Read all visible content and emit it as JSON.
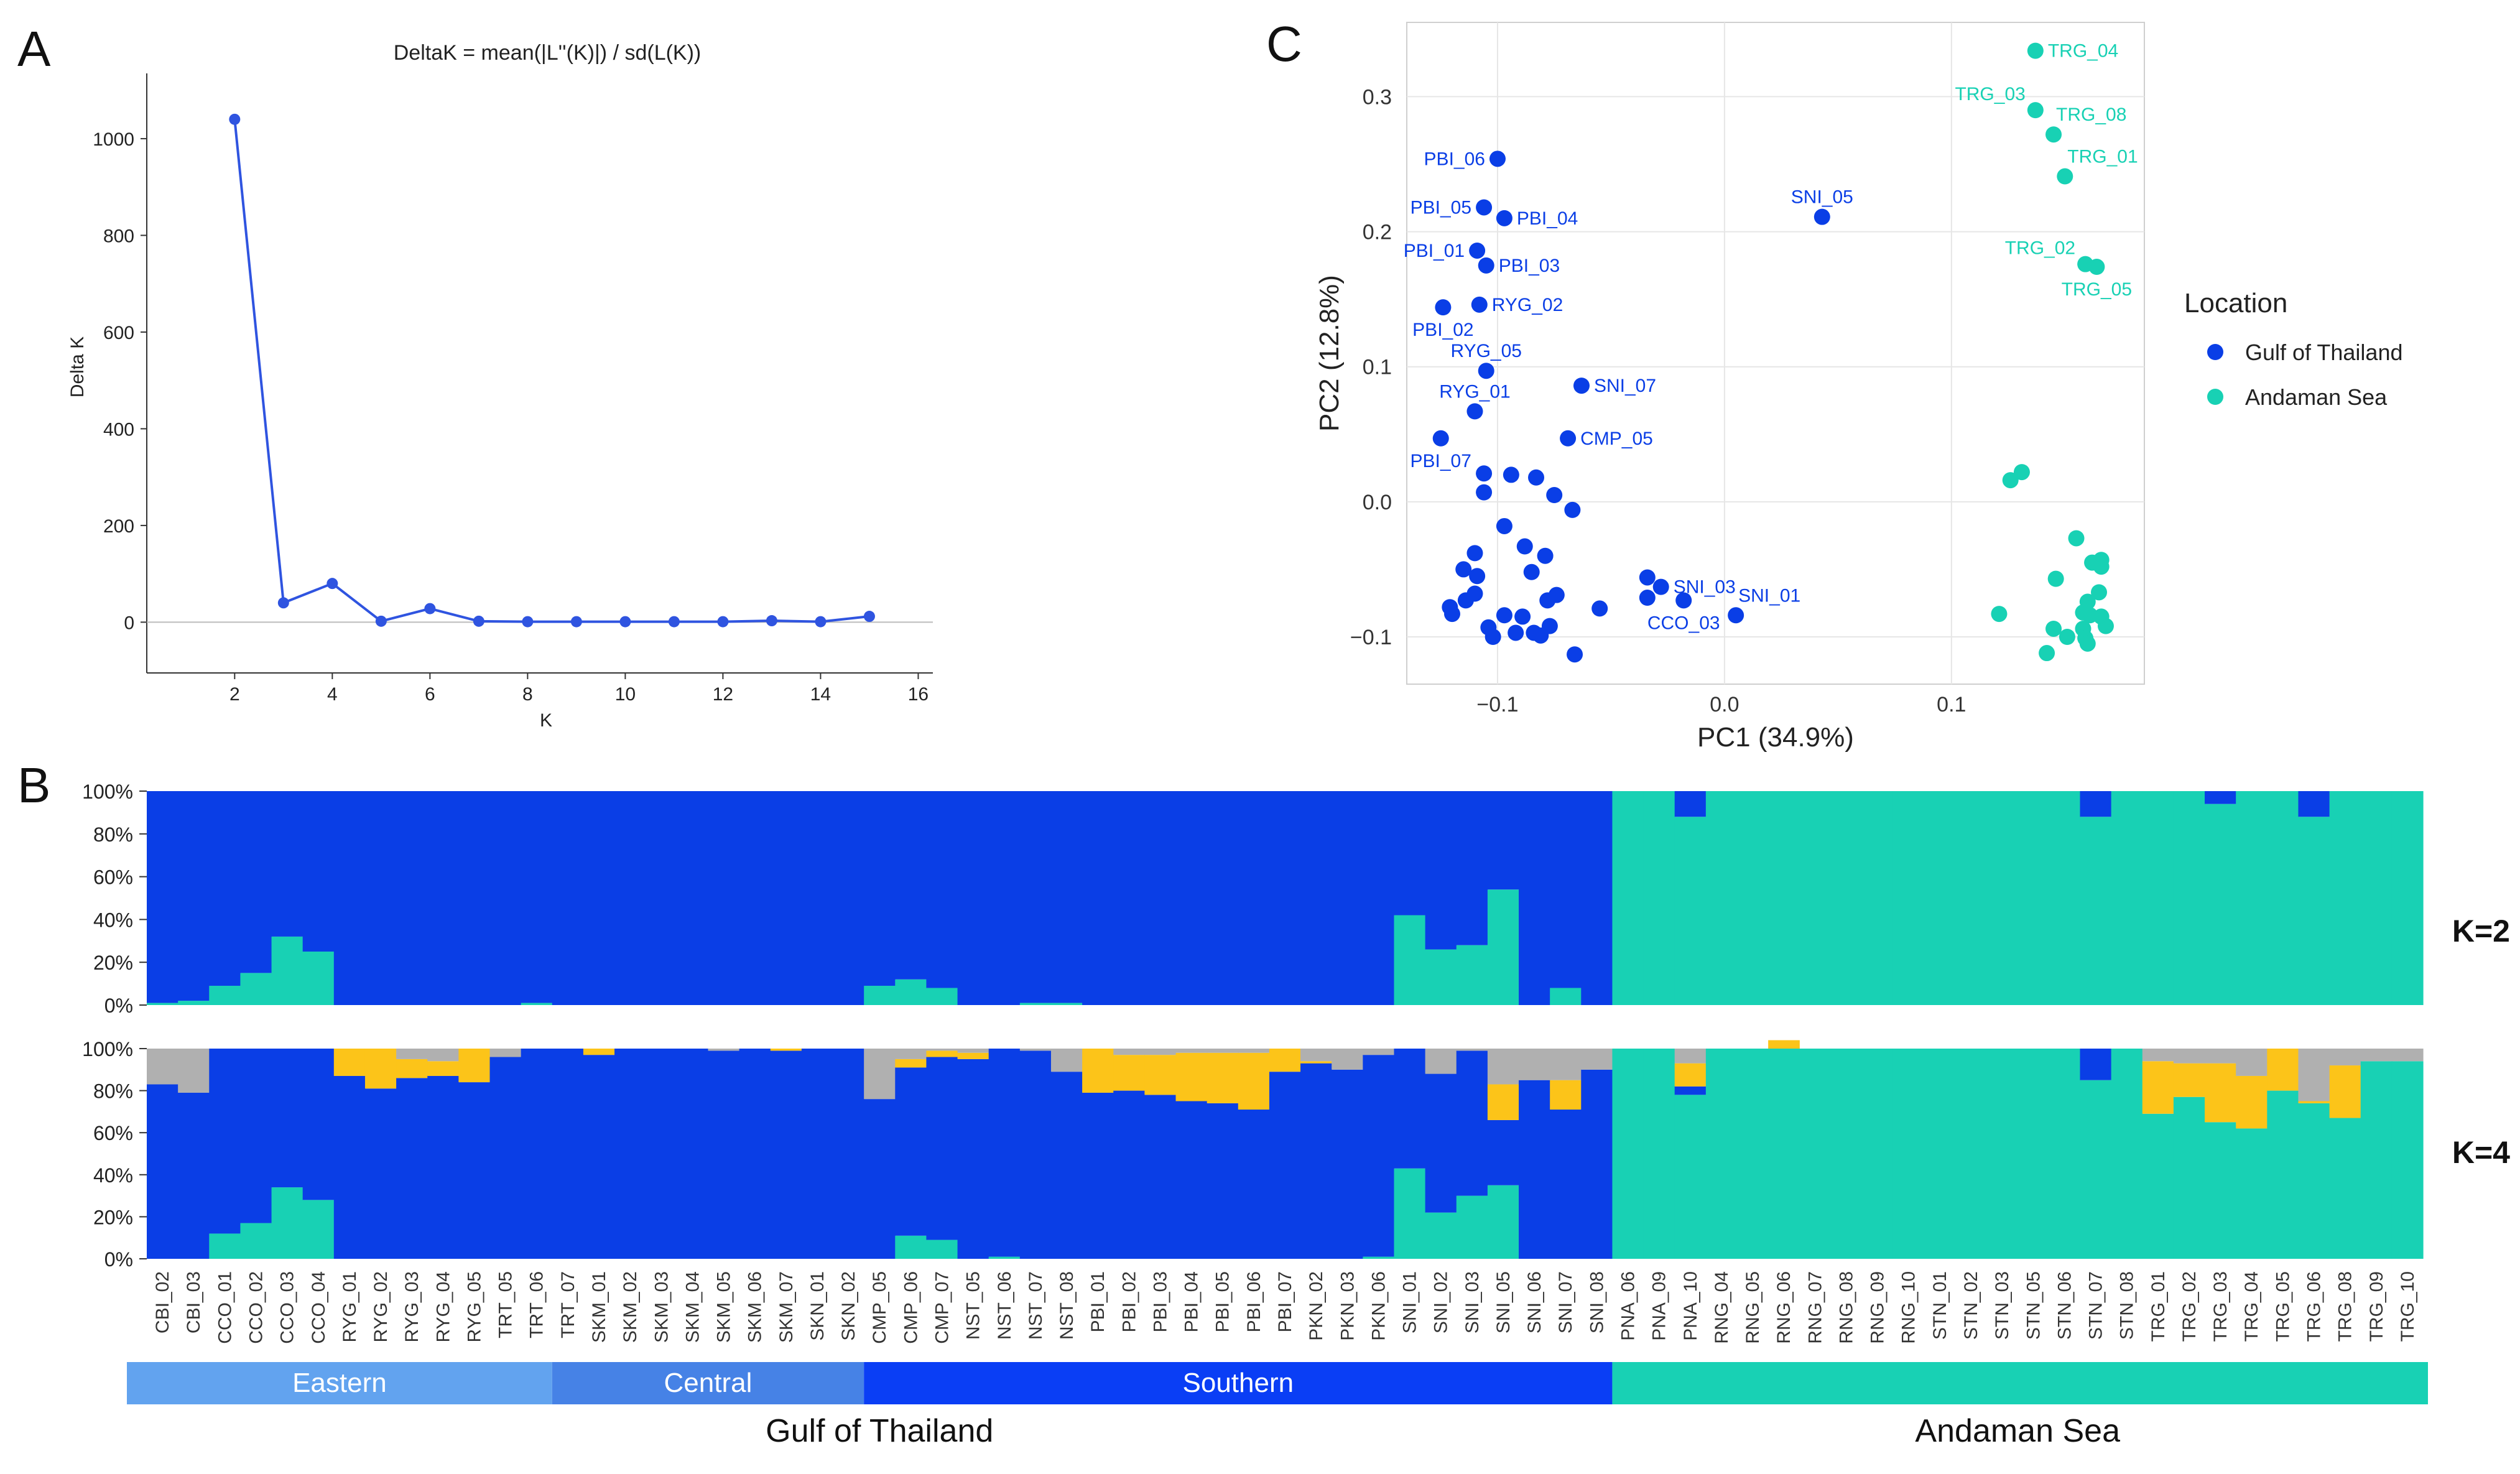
{
  "panels": {
    "A": "A",
    "B": "B",
    "C": "C"
  },
  "colors": {
    "gulf": "#0a3ee6",
    "andaman": "#18d1b4",
    "yellow": "#fcc419",
    "grey": "#b0b0b0",
    "eastern": "#62a3ef",
    "central": "#4682e6",
    "southern": "#0a3ef5",
    "line": "#2f54e0"
  },
  "chart_data": [
    {
      "id": "deltaK",
      "type": "line",
      "title": "DeltaK = mean(|L''(K)|) / sd(L(K))",
      "xlabel": "K",
      "ylabel": "Delta K",
      "xlim": [
        0.2,
        16.3
      ],
      "ylim": [
        -105,
        1135
      ],
      "xticks": [
        2,
        4,
        6,
        8,
        10,
        12,
        14,
        16
      ],
      "yticks": [
        0,
        200,
        400,
        600,
        800,
        1000
      ],
      "x": [
        2,
        3,
        4,
        5,
        6,
        7,
        8,
        9,
        10,
        11,
        12,
        13,
        14,
        15
      ],
      "y": [
        1040,
        40,
        80,
        2,
        28,
        2,
        1,
        1,
        1,
        1,
        1,
        3,
        1,
        12
      ]
    },
    {
      "id": "pca",
      "type": "scatter",
      "xlabel": "PC1 (34.9%)",
      "ylabel": "PC2 (12.8%)",
      "xlim": [
        -0.14,
        0.185
      ],
      "ylim": [
        -0.135,
        0.355
      ],
      "xticks": [
        -0.1,
        0.0,
        0.1
      ],
      "xtick_labels": [
        "−0.1",
        "0.0",
        "0.1"
      ],
      "yticks": [
        -0.1,
        0.0,
        0.1,
        0.2,
        0.3
      ],
      "ytick_labels": [
        "−0.1",
        "0.0",
        "0.1",
        "0.2",
        "0.3"
      ],
      "legend_title": "Location",
      "legend": [
        {
          "name": "Gulf of Thailand",
          "color": "#0a3ee6"
        },
        {
          "name": "Andaman Sea",
          "color": "#18d1b4"
        }
      ],
      "series": [
        {
          "name": "Gulf of Thailand",
          "color": "#0a3ee6",
          "points": [
            [
              -0.1,
              0.254
            ],
            [
              -0.106,
              0.218
            ],
            [
              -0.097,
              0.21
            ],
            [
              -0.109,
              0.186
            ],
            [
              -0.105,
              0.175
            ],
            [
              -0.124,
              0.144
            ],
            [
              -0.108,
              0.146
            ],
            [
              -0.105,
              0.097
            ],
            [
              -0.11,
              0.067
            ],
            [
              -0.063,
              0.086
            ],
            [
              -0.069,
              0.047
            ],
            [
              -0.125,
              0.047
            ],
            [
              0.043,
              0.211
            ],
            [
              -0.106,
              0.021
            ],
            [
              -0.106,
              0.007
            ],
            [
              -0.094,
              0.02
            ],
            [
              -0.083,
              0.018
            ],
            [
              -0.075,
              0.005
            ],
            [
              -0.067,
              -0.006
            ],
            [
              -0.097,
              -0.018
            ],
            [
              -0.11,
              -0.038
            ],
            [
              -0.115,
              -0.05
            ],
            [
              -0.109,
              -0.055
            ],
            [
              -0.088,
              -0.033
            ],
            [
              -0.085,
              -0.052
            ],
            [
              -0.079,
              -0.04
            ],
            [
              -0.114,
              -0.073
            ],
            [
              -0.121,
              -0.078
            ],
            [
              -0.12,
              -0.083
            ],
            [
              -0.11,
              -0.068
            ],
            [
              -0.104,
              -0.093
            ],
            [
              -0.102,
              -0.1
            ],
            [
              -0.097,
              -0.084
            ],
            [
              -0.092,
              -0.097
            ],
            [
              -0.089,
              -0.085
            ],
            [
              -0.084,
              -0.097
            ],
            [
              -0.078,
              -0.073
            ],
            [
              -0.074,
              -0.069
            ],
            [
              -0.077,
              -0.092
            ],
            [
              -0.081,
              -0.099
            ],
            [
              -0.066,
              -0.113
            ],
            [
              -0.055,
              -0.079
            ],
            [
              -0.034,
              -0.056
            ],
            [
              -0.034,
              -0.071
            ],
            [
              -0.028,
              -0.063
            ],
            [
              -0.018,
              -0.073
            ],
            [
              0.005,
              -0.084
            ]
          ]
        },
        {
          "name": "Andaman Sea",
          "color": "#18d1b4",
          "points": [
            [
              0.137,
              0.334
            ],
            [
              0.137,
              0.29
            ],
            [
              0.145,
              0.272
            ],
            [
              0.15,
              0.241
            ],
            [
              0.159,
              0.176
            ],
            [
              0.164,
              0.174
            ],
            [
              0.126,
              0.016
            ],
            [
              0.131,
              0.022
            ],
            [
              0.155,
              -0.027
            ],
            [
              0.166,
              -0.043
            ],
            [
              0.162,
              -0.045
            ],
            [
              0.166,
              -0.048
            ],
            [
              0.146,
              -0.057
            ],
            [
              0.16,
              -0.074
            ],
            [
              0.165,
              -0.067
            ],
            [
              0.121,
              -0.083
            ],
            [
              0.158,
              -0.082
            ],
            [
              0.161,
              -0.084
            ],
            [
              0.166,
              -0.085
            ],
            [
              0.168,
              -0.092
            ],
            [
              0.145,
              -0.094
            ],
            [
              0.151,
              -0.1
            ],
            [
              0.158,
              -0.094
            ],
            [
              0.159,
              -0.101
            ],
            [
              0.16,
              -0.105
            ],
            [
              0.142,
              -0.112
            ]
          ]
        }
      ],
      "point_labels": [
        {
          "text": "PBI_06",
          "x": -0.1,
          "y": 0.254,
          "side": "left"
        },
        {
          "text": "PBI_05",
          "x": -0.106,
          "y": 0.218,
          "side": "left"
        },
        {
          "text": "PBI_04",
          "x": -0.097,
          "y": 0.21,
          "side": "right"
        },
        {
          "text": "PBI_01",
          "x": -0.109,
          "y": 0.186,
          "side": "left"
        },
        {
          "text": "PBI_03",
          "x": -0.105,
          "y": 0.175,
          "side": "right"
        },
        {
          "text": "RYG_02",
          "x": -0.108,
          "y": 0.146,
          "side": "right"
        },
        {
          "text": "PBI_02",
          "x": -0.124,
          "y": 0.144,
          "side": "below"
        },
        {
          "text": "RYG_05",
          "x": -0.105,
          "y": 0.097,
          "side": "above"
        },
        {
          "text": "SNI_07",
          "x": -0.063,
          "y": 0.086,
          "side": "right"
        },
        {
          "text": "RYG_01",
          "x": -0.11,
          "y": 0.067,
          "side": "above"
        },
        {
          "text": "CMP_05",
          "x": -0.069,
          "y": 0.047,
          "side": "right"
        },
        {
          "text": "PBI_07",
          "x": -0.125,
          "y": 0.047,
          "side": "below"
        },
        {
          "text": "SNI_05",
          "x": 0.043,
          "y": 0.211,
          "side": "above"
        },
        {
          "text": "SNI_03",
          "x": -0.028,
          "y": -0.063,
          "side": "right"
        },
        {
          "text": "SNI_01",
          "x": 0.005,
          "y": -0.084,
          "side": "upright"
        },
        {
          "text": "CCO_03",
          "x": -0.018,
          "y": -0.073,
          "side": "below"
        },
        {
          "text": "TRG_04",
          "x": 0.137,
          "y": 0.334,
          "side": "right"
        },
        {
          "text": "TRG_03",
          "x": 0.137,
          "y": 0.29,
          "side": "upleft"
        },
        {
          "text": "TRG_08",
          "x": 0.145,
          "y": 0.272,
          "side": "upright"
        },
        {
          "text": "TRG_01",
          "x": 0.15,
          "y": 0.241,
          "side": "upright"
        },
        {
          "text": "TRG_02",
          "x": 0.159,
          "y": 0.176,
          "side": "upleft"
        },
        {
          "text": "TRG_05",
          "x": 0.164,
          "y": 0.174,
          "side": "below"
        }
      ]
    },
    {
      "id": "structure",
      "type": "bar",
      "stacked": true,
      "yticks": [
        "0%",
        "20%",
        "40%",
        "60%",
        "80%",
        "100%"
      ],
      "categories": [
        "CBI_02",
        "CBI_03",
        "CCO_01",
        "CCO_02",
        "CCO_03",
        "CCO_04",
        "RYG_01",
        "RYG_02",
        "RYG_03",
        "RYG_04",
        "RYG_05",
        "TRT_05",
        "TRT_06",
        "TRT_07",
        "SKM_01",
        "SKM_02",
        "SKM_03",
        "SKM_04",
        "SKM_05",
        "SKM_06",
        "SKM_07",
        "SKN_01",
        "SKN_02",
        "CMP_05",
        "CMP_06",
        "CMP_07",
        "NST_05",
        "NST_06",
        "NST_07",
        "NST_08",
        "PBI_01",
        "PBI_02",
        "PBI_03",
        "PBI_04",
        "PBI_05",
        "PBI_06",
        "PBI_07",
        "PKN_02",
        "PKN_03",
        "PKN_06",
        "SNI_01",
        "SNI_02",
        "SNI_03",
        "SNI_05",
        "SNI_06",
        "SNI_07",
        "SNI_08",
        "PNA_06",
        "PNA_09",
        "PNA_10",
        "RNG_04",
        "RNG_05",
        "RNG_06",
        "RNG_07",
        "RNG_08",
        "RNG_09",
        "RNG_10",
        "STN_01",
        "STN_02",
        "STN_03",
        "STN_05",
        "STN_06",
        "STN_07",
        "STN_08",
        "TRG_01",
        "TRG_02",
        "TRG_03",
        "TRG_04",
        "TRG_05",
        "TRG_06",
        "TRG_08",
        "TRG_09",
        "TRG_10"
      ],
      "k2": {
        "label": "K=2",
        "series_names": [
          "Andaman component",
          "Gulf component"
        ],
        "andaman": [
          1,
          2,
          9,
          15,
          32,
          25,
          0,
          0,
          0,
          0,
          0,
          0,
          1,
          0,
          0,
          0,
          0,
          0,
          0,
          0,
          0,
          0,
          0,
          9,
          12,
          8,
          0,
          0,
          1,
          1,
          0,
          0,
          0,
          0,
          0,
          0,
          0,
          0,
          0,
          0,
          42,
          26,
          28,
          54,
          0,
          8,
          0,
          100,
          100,
          88,
          100,
          100,
          100,
          100,
          100,
          100,
          100,
          100,
          100,
          100,
          100,
          100,
          88,
          100,
          100,
          100,
          94,
          100,
          100,
          88,
          100,
          100,
          100
        ]
      },
      "k4": {
        "label": "K=4",
        "series_names": [
          "Andaman component",
          "Gulf component",
          "Yellow component",
          "Grey component"
        ],
        "andaman": [
          0,
          0,
          12,
          17,
          34,
          28,
          0,
          0,
          0,
          0,
          0,
          0,
          0,
          0,
          0,
          0,
          0,
          0,
          0,
          0,
          0,
          0,
          0,
          0,
          11,
          9,
          0,
          1,
          0,
          0,
          0,
          0,
          0,
          0,
          0,
          0,
          0,
          0,
          0,
          1,
          43,
          22,
          30,
          35,
          0,
          0,
          0,
          100,
          100,
          78,
          100,
          100,
          100,
          100,
          100,
          100,
          100,
          100,
          100,
          100,
          100,
          100,
          85,
          100,
          69,
          77,
          65,
          62,
          80,
          74,
          67,
          94,
          94
        ],
        "gulf": [
          83,
          79,
          88,
          83,
          66,
          72,
          87,
          81,
          86,
          87,
          84,
          96,
          100,
          100,
          97,
          100,
          100,
          100,
          99,
          100,
          99,
          100,
          100,
          76,
          80,
          87,
          95,
          99,
          99,
          89,
          79,
          80,
          78,
          75,
          74,
          71,
          89,
          93,
          90,
          96,
          57,
          66,
          69,
          31,
          85,
          71,
          90,
          0,
          0,
          4,
          0,
          0,
          0,
          0,
          0,
          0,
          0,
          0,
          0,
          0,
          0,
          0,
          15,
          0,
          0,
          0,
          0,
          0,
          0,
          0,
          0,
          0,
          0
        ],
        "yellow": [
          0,
          0,
          0,
          0,
          0,
          0,
          13,
          19,
          9,
          7,
          16,
          0,
          0,
          0,
          3,
          0,
          0,
          0,
          0,
          0,
          1,
          0,
          0,
          0,
          4,
          3,
          3,
          0,
          0,
          0,
          21,
          17,
          19,
          23,
          24,
          27,
          11,
          1,
          0,
          0,
          0,
          0,
          0,
          17,
          0,
          14,
          0,
          0,
          0,
          11,
          0,
          0,
          4,
          0,
          0,
          0,
          0,
          0,
          0,
          0,
          0,
          0,
          0,
          0,
          25,
          16,
          28,
          25,
          20,
          1,
          25,
          0,
          0
        ],
        "grey": [
          17,
          21,
          0,
          0,
          0,
          0,
          0,
          0,
          5,
          6,
          0,
          4,
          0,
          0,
          0,
          0,
          0,
          0,
          1,
          0,
          0,
          0,
          0,
          24,
          5,
          1,
          2,
          0,
          1,
          11,
          0,
          3,
          3,
          2,
          2,
          2,
          0,
          6,
          10,
          3,
          0,
          12,
          1,
          17,
          15,
          15,
          10,
          0,
          0,
          7,
          0,
          0,
          0,
          0,
          0,
          0,
          0,
          0,
          0,
          0,
          0,
          0,
          0,
          0,
          6,
          7,
          7,
          13,
          0,
          25,
          8,
          6,
          6
        ]
      },
      "regions": [
        {
          "name": "Eastern",
          "start": 0,
          "end": 13,
          "color": "#62a3ef"
        },
        {
          "name": "Central",
          "start": 13,
          "end": 23,
          "color": "#4682e6"
        },
        {
          "name": "Southern",
          "start": 23,
          "end": 47,
          "color": "#0a3ef5"
        },
        {
          "name": "",
          "start": 47,
          "end": 73,
          "color": "#18d1b4"
        }
      ],
      "groups": [
        {
          "name": "Gulf of Thailand",
          "start": 0,
          "end": 47
        },
        {
          "name": "Andaman Sea",
          "start": 47,
          "end": 73
        }
      ]
    }
  ]
}
